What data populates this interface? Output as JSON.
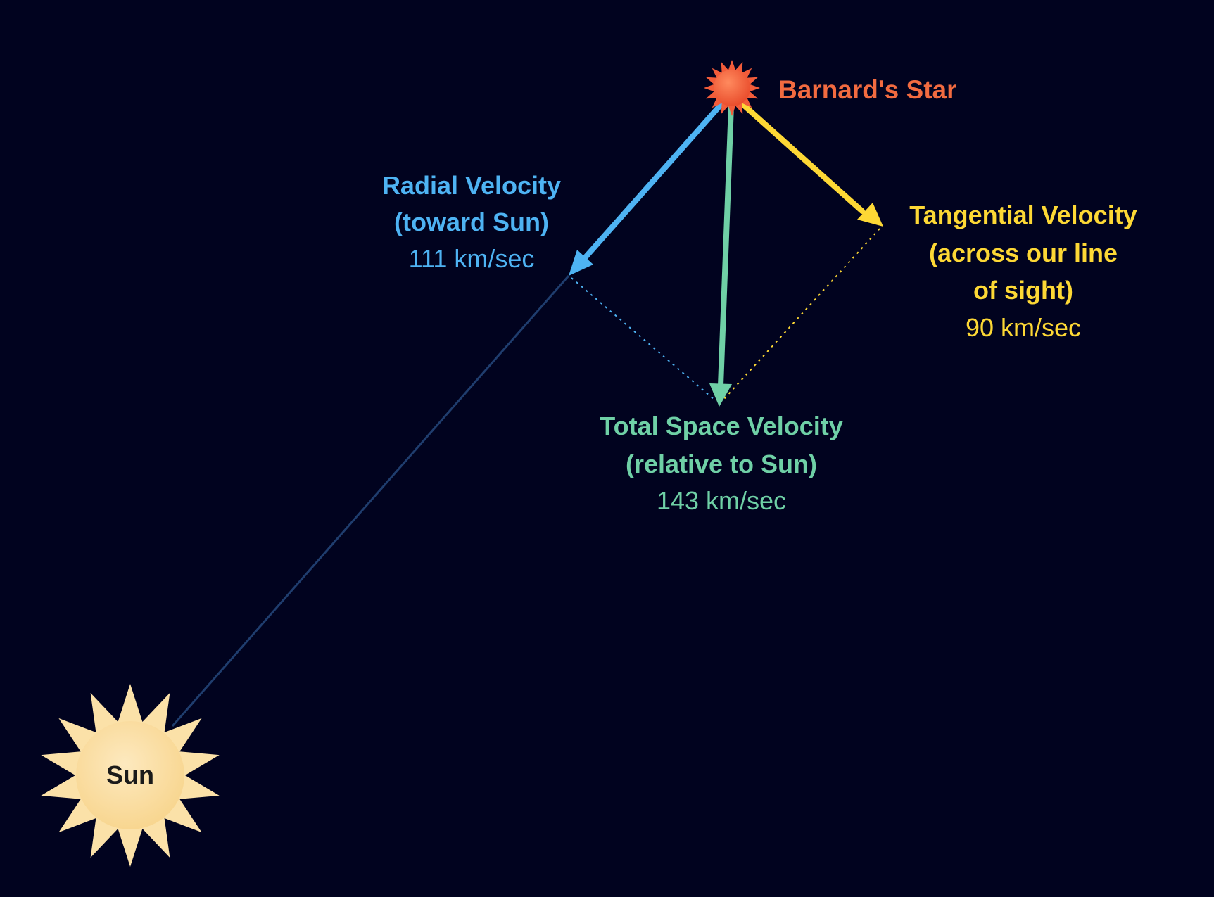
{
  "colors": {
    "background": "#01031f",
    "radial": "#4eb3f3",
    "tangential": "#fdd835",
    "total": "#6fd0a6",
    "star": "#f25c3a",
    "star_label": "#f26b40",
    "sun": "#fbe1a8",
    "sun_text": "#1a1a1a",
    "sight_line": "#1f3d6e"
  },
  "star": {
    "label": "Barnard's Star"
  },
  "sun": {
    "label": "Sun"
  },
  "radial": {
    "title": "Radial Velocity",
    "subtitle": "(toward Sun)",
    "value": "111 km/sec"
  },
  "tangential": {
    "title": "Tangential Velocity",
    "subtitle_1": "(across our line",
    "subtitle_2": "of sight)",
    "value": "90 km/sec"
  },
  "total": {
    "title": "Total Space Velocity",
    "subtitle": "(relative to Sun)",
    "value": "143 km/sec"
  }
}
